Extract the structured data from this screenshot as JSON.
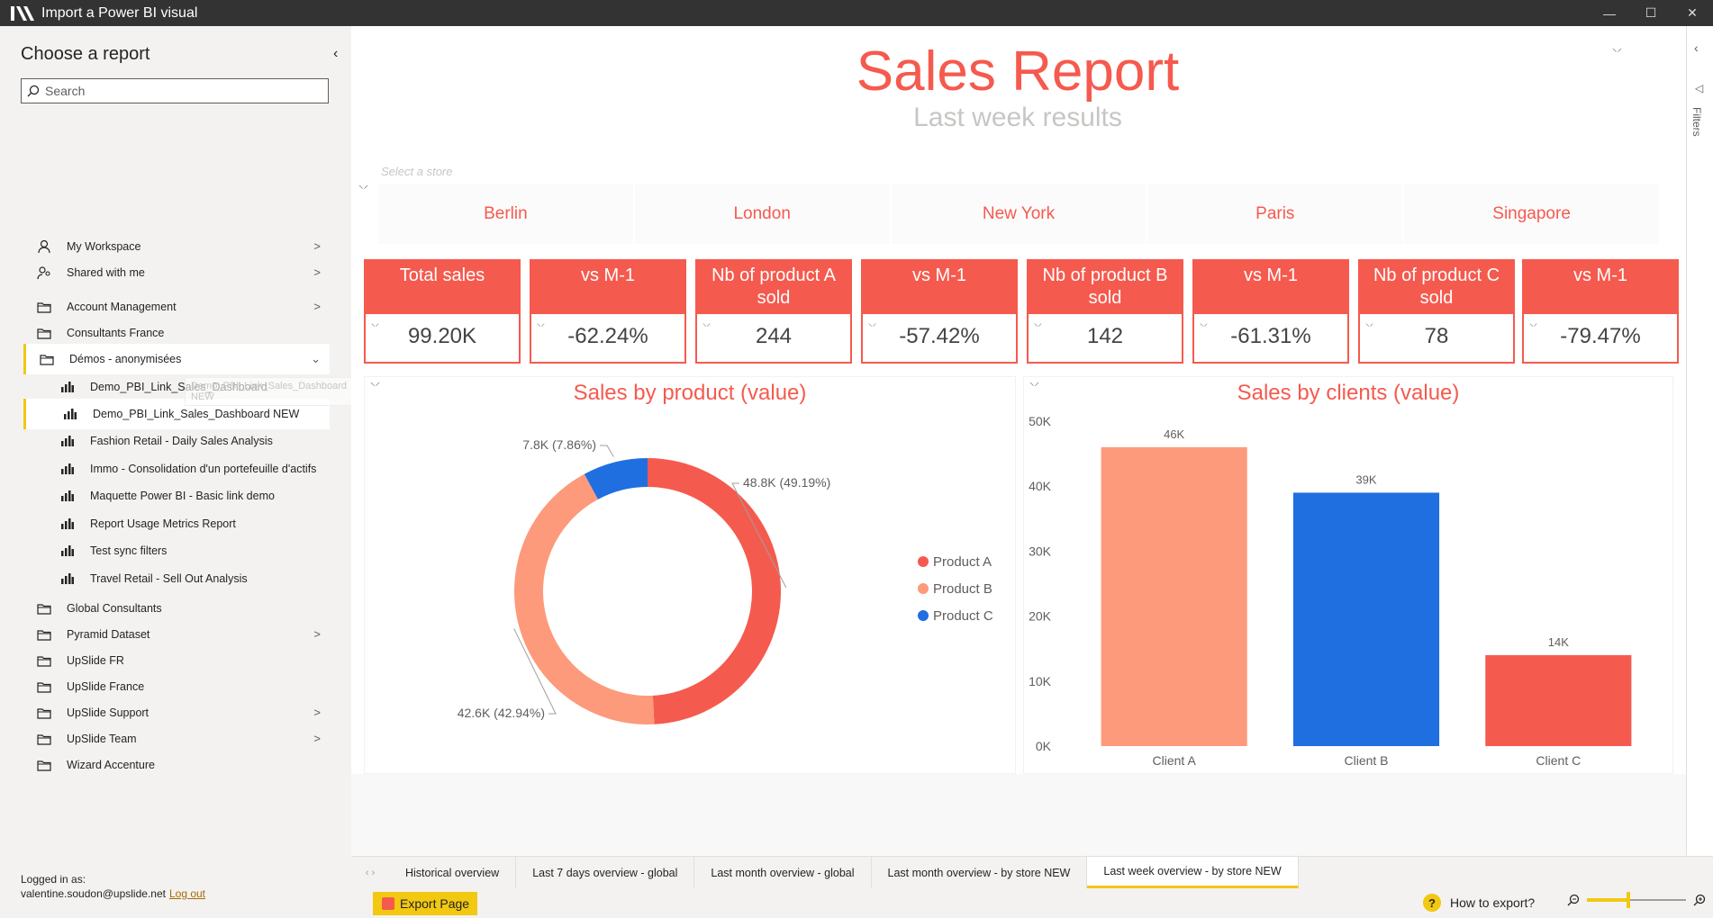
{
  "window": {
    "title": "Import a Power BI visual",
    "controls": [
      "—",
      "☐",
      "✕"
    ]
  },
  "sidebar": {
    "header": "Choose a report",
    "search_placeholder": "Search",
    "items": [
      {
        "label": "My Workspace",
        "icon": "person-icon",
        "chevron": ">"
      },
      {
        "label": "Shared with me",
        "icon": "people-icon",
        "chevron": ">"
      },
      {
        "label": "Account Management",
        "icon": "folder-icon",
        "chevron": ">"
      },
      {
        "label": "Consultants France",
        "icon": "folder-icon"
      },
      {
        "label": "Démos - anonymisées",
        "icon": "folder-icon",
        "chevron": "⌄"
      },
      {
        "label": "Demo_PBI_Link_Sales_Dashboard",
        "icon": "report-icon"
      },
      {
        "label": "Demo_PBI_Link_Sales_Dashboard NEW",
        "icon": "report-icon"
      },
      {
        "label": "Fashion Retail - Daily Sales Analysis",
        "icon": "report-icon"
      },
      {
        "label": "Immo - Consolidation d'un portefeuille d'actifs",
        "icon": "report-icon"
      },
      {
        "label": "Maquette Power BI - Basic link demo",
        "icon": "report-icon"
      },
      {
        "label": "Report Usage Metrics Report",
        "icon": "report-icon"
      },
      {
        "label": "Test sync filters",
        "icon": "report-icon"
      },
      {
        "label": "Travel Retail - Sell Out Analysis",
        "icon": "report-icon"
      },
      {
        "label": "Global Consultants",
        "icon": "folder-icon"
      },
      {
        "label": "Pyramid Dataset",
        "icon": "folder-icon",
        "chevron": ">"
      },
      {
        "label": "UpSlide FR",
        "icon": "folder-icon"
      },
      {
        "label": "UpSlide France",
        "icon": "folder-icon"
      },
      {
        "label": "UpSlide Support",
        "icon": "folder-icon",
        "chevron": ">"
      },
      {
        "label": "UpSlide Team",
        "icon": "folder-icon",
        "chevron": ">"
      },
      {
        "label": "Wizard Accenture",
        "icon": "folder-icon"
      }
    ],
    "tooltip": "Demo_PBI_Link_Sales_Dashboard NEW",
    "logged_in_label": "Logged in as:",
    "user_email": "valentine.soudon@upslide.net",
    "logout": "Log out"
  },
  "report": {
    "title": "Sales Report",
    "subtitle": "Last week results",
    "slicer_placeholder": "Select a store",
    "stores": [
      "Berlin",
      "London",
      "New York",
      "Paris",
      "Singapore"
    ],
    "kpis": [
      {
        "header": "Total sales",
        "value": "99.20K"
      },
      {
        "header": "vs M-1",
        "value": "-62.24%"
      },
      {
        "header": "Nb of product A sold",
        "value": "244"
      },
      {
        "header": "vs M-1",
        "value": "-57.42%"
      },
      {
        "header": "Nb of product B sold",
        "value": "142"
      },
      {
        "header": "vs M-1",
        "value": "-61.31%"
      },
      {
        "header": "Nb of product C sold",
        "value": "78"
      },
      {
        "header": "vs M-1",
        "value": "-79.47%"
      }
    ],
    "accent": "#f55a4e",
    "filters_label": "Filters"
  },
  "chart_data": [
    {
      "type": "pie",
      "title": "Sales by product (value)",
      "categories": [
        "Product A",
        "Product B",
        "Product C"
      ],
      "values": [
        48.8,
        42.6,
        7.8
      ],
      "data_labels": [
        "48.8K (49.19%)",
        "42.6K (42.94%)",
        "7.8K (7.86%)"
      ],
      "colors": [
        "#f55a4e",
        "#fd9a7b",
        "#1f6fe0"
      ],
      "legend": "right"
    },
    {
      "type": "bar",
      "title": "Sales by clients (value)",
      "categories": [
        "Client A",
        "Client B",
        "Client C"
      ],
      "values": [
        46,
        39,
        14
      ],
      "data_labels": [
        "46K",
        "39K",
        "14K"
      ],
      "colors": [
        "#fd9a7b",
        "#1f6fe0",
        "#f55a4e"
      ],
      "ylim": [
        0,
        50
      ],
      "yticks": [
        "0K",
        "10K",
        "20K",
        "30K",
        "40K",
        "50K"
      ]
    }
  ],
  "tabs": {
    "items": [
      "Historical overview",
      "Last 7 days overview - global",
      "Last month overview - global",
      "Last month overview - by store NEW",
      "Last week overview - by store NEW"
    ],
    "active_index": 4
  },
  "bottom": {
    "export_label": "Export Page",
    "help_label": "How to export?",
    "zoom_level": 0.4
  }
}
